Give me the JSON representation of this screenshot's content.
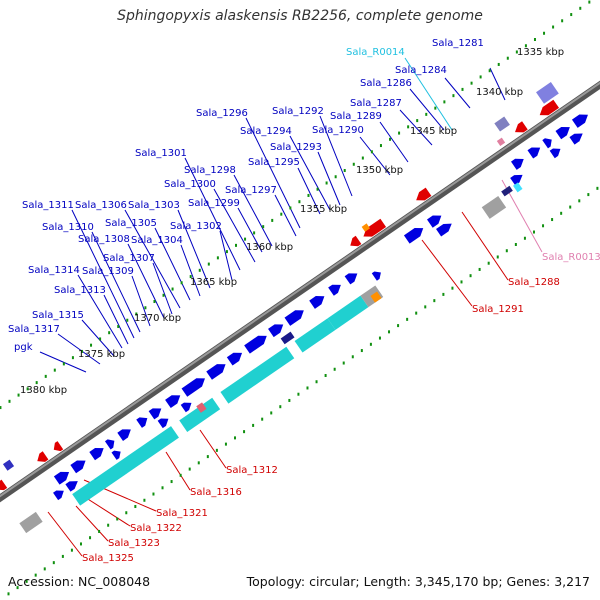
{
  "title": "Sphingopyxis alaskensis RB2256, complete genome",
  "accession": "Accession: NC_008048",
  "summary": "Topology: circular; Length: 3,345,170 bp; Genes: 3,217",
  "colors": {
    "forward_gene": "#0000e0",
    "reverse_gene": "#e00000",
    "cds_band": "#20d0d0",
    "rrna": "#30c030",
    "trna": "#40e0ff",
    "pseudo": "#a0a0a0",
    "label_forward": "#0000c0",
    "label_reverse": "#d00000",
    "label_rna_forward": "#20c0e0",
    "label_rna_reverse": "#e080b0",
    "scale_dots": "#109010"
  },
  "scale_marks": [
    "1335 kbp",
    "1340 kbp",
    "1345 kbp",
    "1350 kbp",
    "1355 kbp",
    "1360 kbp",
    "1365 kbp",
    "1370 kbp",
    "1375 kbp",
    "1380 kbp"
  ],
  "forward_labels": [
    "Sala_1281",
    "Sala_1284",
    "Sala_1286",
    "Sala_1287",
    "Sala_1289",
    "Sala_1290",
    "Sala_1292",
    "Sala_1293",
    "Sala_1294",
    "Sala_1295",
    "Sala_1296",
    "Sala_1297",
    "Sala_1298",
    "Sala_1299",
    "Sala_1300",
    "Sala_1301",
    "Sala_1302",
    "Sala_1303",
    "Sala_1304",
    "Sala_1305",
    "Sala_1306",
    "Sala_1307",
    "Sala_1308",
    "Sala_1309",
    "Sala_1310",
    "Sala_1311",
    "Sala_1313",
    "Sala_1314",
    "Sala_1315",
    "Sala_1317",
    "pgk"
  ],
  "rna_forward_labels": [
    "Sala_R0014"
  ],
  "reverse_labels": [
    "Sala_1288",
    "Sala_1291",
    "Sala_1312",
    "Sala_1316",
    "Sala_1321",
    "Sala_1322",
    "Sala_1323",
    "Sala_1325"
  ],
  "rna_reverse_labels": [
    "Sala_R0013"
  ]
}
